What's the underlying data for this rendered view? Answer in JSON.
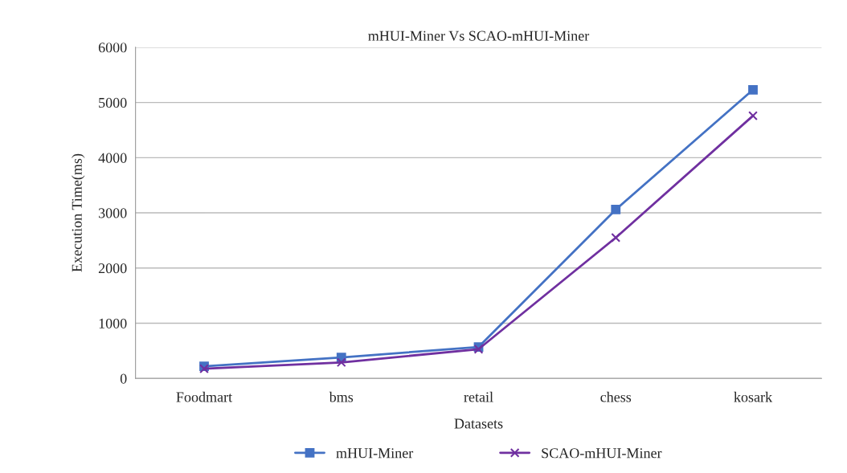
{
  "chart_data": {
    "type": "line",
    "title": "mHUI-Miner Vs SCAO-mHUI-Miner",
    "xlabel": "Datasets",
    "ylabel": "Execution Time(ms)",
    "categories": [
      "Foodmart",
      "bms",
      "retail",
      "chess",
      "kosark"
    ],
    "series": [
      {
        "name": "mHUI-Miner",
        "color": "#4472c4",
        "marker": "square",
        "values": [
          220,
          380,
          570,
          3060,
          5230
        ]
      },
      {
        "name": "SCAO-mHUI-Miner",
        "color": "#7030a0",
        "marker": "cross",
        "values": [
          175,
          290,
          530,
          2550,
          4760
        ]
      }
    ],
    "ylim": [
      0,
      6000
    ],
    "yticks": [
      0,
      1000,
      2000,
      3000,
      4000,
      5000,
      6000
    ],
    "grid": "y",
    "legend": "bottom"
  }
}
